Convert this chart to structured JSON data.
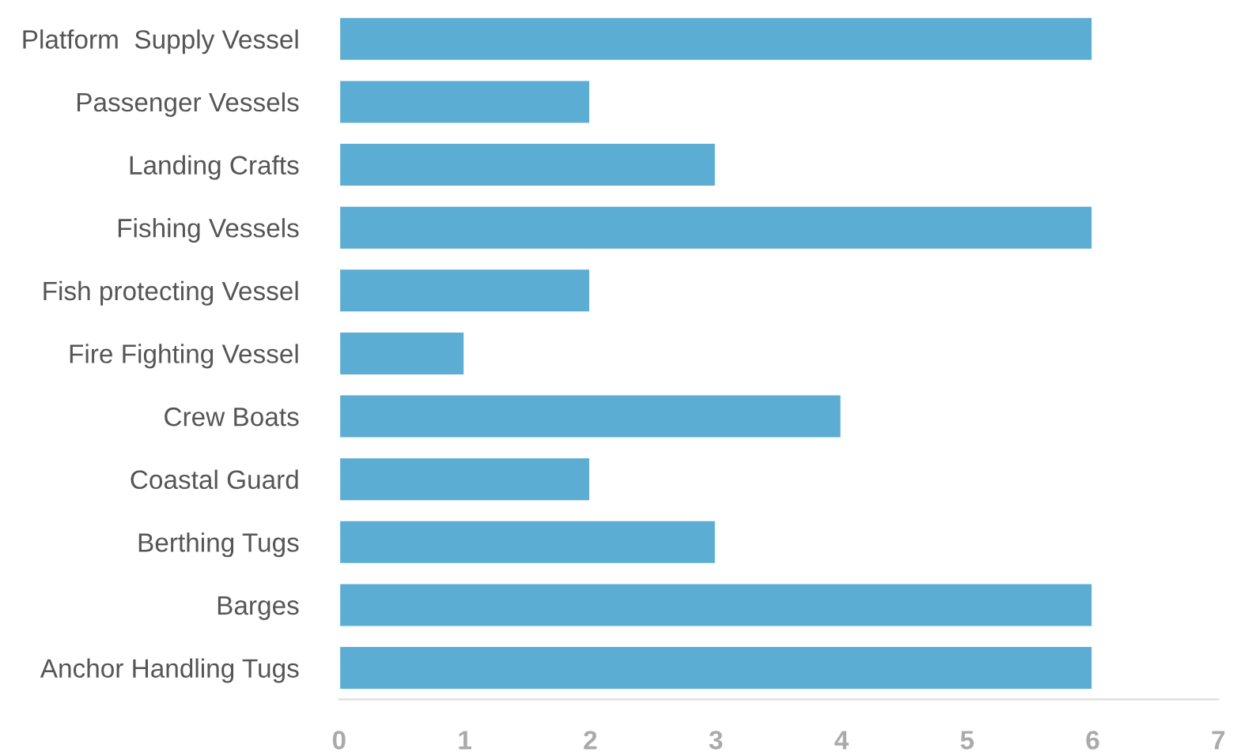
{
  "chart_data": {
    "type": "bar",
    "orientation": "horizontal",
    "categories": [
      "Platform  Supply Vessel",
      "Passenger Vessels",
      "Landing Crafts",
      "Fishing Vessels",
      "Fish protecting Vessel",
      "Fire Fighting Vessel",
      "Crew Boats",
      "Coastal Guard",
      "Berthing Tugs",
      "Barges",
      "Anchor Handling Tugs"
    ],
    "values": [
      6,
      2,
      3,
      6,
      2,
      1,
      4,
      2,
      3,
      6,
      6
    ],
    "color": "#5badd3",
    "xlim": [
      0,
      7
    ],
    "xticks": [
      0,
      1,
      2,
      3,
      4,
      5,
      6,
      7
    ],
    "grid": false,
    "legend": false
  }
}
